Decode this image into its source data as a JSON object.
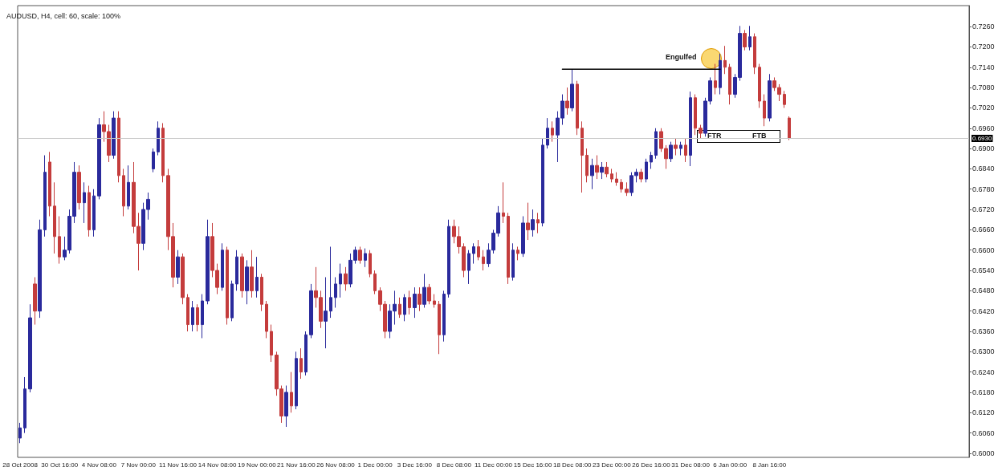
{
  "chart_data": {
    "type": "candlestick",
    "title": "AUDUSD, H4, cell: 60, scale: 100%",
    "categories": [
      "28 Oct 2008",
      null,
      null,
      null,
      null,
      null,
      null,
      null,
      "30 Oct 16:00",
      null,
      null,
      null,
      null,
      null,
      null,
      null,
      "4 Nov 08:00",
      null,
      null,
      null,
      null,
      null,
      null,
      null,
      "7 Nov 00:00",
      null,
      null,
      null,
      null,
      null,
      null,
      null,
      "11 Nov 16:00",
      null,
      null,
      null,
      null,
      null,
      null,
      null,
      "14 Nov 08:00",
      null,
      null,
      null,
      null,
      null,
      null,
      null,
      "19 Nov 00:00",
      null,
      null,
      null,
      null,
      null,
      null,
      null,
      "21 Nov 16:00",
      null,
      null,
      null,
      null,
      null,
      null,
      null,
      "26 Nov 08:00",
      null,
      null,
      null,
      null,
      null,
      null,
      null,
      "1 Dec 00:00",
      null,
      null,
      null,
      null,
      null,
      null,
      null,
      "3 Dec 16:00",
      null,
      null,
      null,
      null,
      null,
      null,
      null,
      "8 Dec 08:00",
      null,
      null,
      null,
      null,
      null,
      null,
      null,
      "11 Dec 00:00",
      null,
      null,
      null,
      null,
      null,
      null,
      null,
      "15 Dec 16:00",
      null,
      null,
      null,
      null,
      null,
      null,
      null,
      "18 Dec 08:00",
      null,
      null,
      null,
      null,
      null,
      null,
      null,
      "23 Dec 00:00",
      null,
      null,
      null,
      null,
      null,
      null,
      null,
      "26 Dec 16:00",
      null,
      null,
      null,
      null,
      null,
      null,
      null,
      "31 Dec 08:00",
      null,
      null,
      null,
      null,
      null,
      null,
      null,
      "6 Jan 00:00",
      null,
      null,
      null,
      null,
      null,
      null,
      null,
      "8 Jan 16:00",
      null,
      null,
      null,
      null,
      null,
      null,
      null,
      null,
      null,
      null,
      null,
      null,
      null,
      null,
      null,
      null,
      null,
      null,
      null,
      null,
      null,
      null,
      null,
      null,
      null,
      null,
      null,
      null,
      null,
      null,
      null,
      null,
      null,
      null,
      null,
      null,
      null,
      null,
      null,
      null
    ],
    "ohlc": [
      [
        0.6045,
        0.609,
        0.603,
        0.6075
      ],
      [
        0.6075,
        0.6225,
        0.606,
        0.619
      ],
      [
        0.619,
        0.644,
        0.618,
        0.64
      ],
      [
        0.65,
        0.652,
        0.638,
        0.642
      ],
      [
        0.642,
        0.669,
        0.64,
        0.666
      ],
      [
        0.666,
        0.688,
        0.664,
        0.683
      ],
      [
        0.686,
        0.689,
        0.67,
        0.673
      ],
      [
        0.673,
        0.68,
        0.659,
        0.664
      ],
      [
        0.664,
        0.67,
        0.656,
        0.658
      ],
      [
        0.658,
        0.664,
        0.657,
        0.66
      ],
      [
        0.66,
        0.672,
        0.659,
        0.67
      ],
      [
        0.67,
        0.686,
        0.668,
        0.683
      ],
      [
        0.683,
        0.685,
        0.672,
        0.674
      ],
      [
        0.674,
        0.68,
        0.668,
        0.677
      ],
      [
        0.677,
        0.679,
        0.664,
        0.666
      ],
      [
        0.666,
        0.678,
        0.664,
        0.676
      ],
      [
        0.676,
        0.699,
        0.675,
        0.697
      ],
      [
        0.697,
        0.701,
        0.692,
        0.695
      ],
      [
        0.695,
        0.697,
        0.686,
        0.688
      ],
      [
        0.688,
        0.701,
        0.687,
        0.699
      ],
      [
        0.699,
        0.701,
        0.68,
        0.682
      ],
      [
        0.682,
        0.684,
        0.67,
        0.673
      ],
      [
        0.673,
        0.685,
        0.672,
        0.68
      ],
      [
        0.68,
        0.686,
        0.665,
        0.667
      ],
      [
        0.667,
        0.671,
        0.654,
        0.662
      ],
      [
        0.662,
        0.674,
        0.66,
        0.672
      ],
      [
        0.672,
        0.677,
        0.669,
        0.675
      ],
      [
        0.684,
        0.69,
        0.683,
        0.689
      ],
      [
        0.689,
        0.698,
        0.688,
        0.696
      ],
      [
        0.696,
        0.6975,
        0.68,
        0.682
      ],
      [
        0.682,
        0.684,
        0.66,
        0.664
      ],
      [
        0.664,
        0.668,
        0.649,
        0.652
      ],
      [
        0.652,
        0.66,
        0.65,
        0.658
      ],
      [
        0.658,
        0.659,
        0.644,
        0.646
      ],
      [
        0.646,
        0.647,
        0.636,
        0.638
      ],
      [
        0.638,
        0.645,
        0.636,
        0.643
      ],
      [
        0.643,
        0.644,
        0.636,
        0.638
      ],
      [
        0.638,
        0.647,
        0.634,
        0.645
      ],
      [
        0.645,
        0.669,
        0.644,
        0.664
      ],
      [
        0.664,
        0.668,
        0.652,
        0.654
      ],
      [
        0.654,
        0.656,
        0.647,
        0.649
      ],
      [
        0.649,
        0.662,
        0.648,
        0.66
      ],
      [
        0.66,
        0.661,
        0.638,
        0.64
      ],
      [
        0.64,
        0.651,
        0.639,
        0.65
      ],
      [
        0.65,
        0.66,
        0.648,
        0.658
      ],
      [
        0.658,
        0.659,
        0.646,
        0.648
      ],
      [
        0.648,
        0.657,
        0.644,
        0.655
      ],
      [
        0.655,
        0.66,
        0.646,
        0.648
      ],
      [
        0.648,
        0.658,
        0.646,
        0.652
      ],
      [
        0.652,
        0.653,
        0.642,
        0.644
      ],
      [
        0.644,
        0.645,
        0.634,
        0.636
      ],
      [
        0.636,
        0.638,
        0.627,
        0.629
      ],
      [
        0.629,
        0.63,
        0.617,
        0.619
      ],
      [
        0.619,
        0.62,
        0.609,
        0.611
      ],
      [
        0.611,
        0.62,
        0.6078,
        0.618
      ],
      [
        0.618,
        0.624,
        0.612,
        0.614
      ],
      [
        0.614,
        0.63,
        0.613,
        0.628
      ],
      [
        0.628,
        0.631,
        0.622,
        0.624
      ],
      [
        0.624,
        0.636,
        0.623,
        0.635
      ],
      [
        0.635,
        0.65,
        0.634,
        0.648
      ],
      [
        0.648,
        0.655,
        0.643,
        0.646
      ],
      [
        0.646,
        0.648,
        0.637,
        0.639
      ],
      [
        0.639,
        0.652,
        0.631,
        0.642
      ],
      [
        0.642,
        0.661,
        0.64,
        0.646
      ],
      [
        0.646,
        0.652,
        0.643,
        0.65
      ],
      [
        0.65,
        0.656,
        0.646,
        0.653
      ],
      [
        0.653,
        0.655,
        0.648,
        0.65
      ],
      [
        0.65,
        0.659,
        0.649,
        0.657
      ],
      [
        0.657,
        0.661,
        0.656,
        0.66
      ],
      [
        0.66,
        0.661,
        0.656,
        0.657
      ],
      [
        0.657,
        0.6605,
        0.655,
        0.659
      ],
      [
        0.659,
        0.66,
        0.652,
        0.653
      ],
      [
        0.653,
        0.654,
        0.647,
        0.648
      ],
      [
        0.648,
        0.649,
        0.642,
        0.644
      ],
      [
        0.644,
        0.645,
        0.634,
        0.636
      ],
      [
        0.636,
        0.644,
        0.634,
        0.642
      ],
      [
        0.642,
        0.648,
        0.638,
        0.644
      ],
      [
        0.644,
        0.646,
        0.64,
        0.641
      ],
      [
        0.641,
        0.647,
        0.639,
        0.646
      ],
      [
        0.646,
        0.648,
        0.641,
        0.643
      ],
      [
        0.643,
        0.649,
        0.64,
        0.647
      ],
      [
        0.647,
        0.649,
        0.642,
        0.644
      ],
      [
        0.644,
        0.653,
        0.643,
        0.649
      ],
      [
        0.649,
        0.65,
        0.644,
        0.645
      ],
      [
        0.645,
        0.647,
        0.643,
        0.644
      ],
      [
        0.644,
        0.645,
        0.6293,
        0.635
      ],
      [
        0.635,
        0.648,
        0.633,
        0.647
      ],
      [
        0.647,
        0.669,
        0.646,
        0.667
      ],
      [
        0.667,
        0.669,
        0.662,
        0.664
      ],
      [
        0.664,
        0.667,
        0.659,
        0.661
      ],
      [
        0.661,
        0.662,
        0.652,
        0.654
      ],
      [
        0.654,
        0.66,
        0.65,
        0.659
      ],
      [
        0.659,
        0.662,
        0.656,
        0.661
      ],
      [
        0.661,
        0.663,
        0.657,
        0.658
      ],
      [
        0.658,
        0.66,
        0.654,
        0.656
      ],
      [
        0.656,
        0.662,
        0.655,
        0.66
      ],
      [
        0.66,
        0.666,
        0.659,
        0.665
      ],
      [
        0.665,
        0.673,
        0.664,
        0.671
      ],
      [
        0.671,
        0.68,
        0.668,
        0.67
      ],
      [
        0.67,
        0.671,
        0.65,
        0.652
      ],
      [
        0.652,
        0.662,
        0.651,
        0.66
      ],
      [
        0.66,
        0.661,
        0.657,
        0.659
      ],
      [
        0.659,
        0.67,
        0.658,
        0.668
      ],
      [
        0.668,
        0.674,
        0.663,
        0.666
      ],
      [
        0.666,
        0.672,
        0.664,
        0.669
      ],
      [
        0.669,
        0.671,
        0.665,
        0.668
      ],
      [
        0.668,
        0.693,
        0.667,
        0.691
      ],
      [
        0.691,
        0.699,
        0.69,
        0.696
      ],
      [
        0.696,
        0.698,
        0.692,
        0.694
      ],
      [
        0.694,
        0.701,
        0.686,
        0.699
      ],
      [
        0.699,
        0.706,
        0.697,
        0.704
      ],
      [
        0.704,
        0.708,
        0.7,
        0.702
      ],
      [
        0.702,
        0.7134,
        0.701,
        0.709
      ],
      [
        0.709,
        0.71,
        0.694,
        0.696
      ],
      [
        0.696,
        0.698,
        0.677,
        0.688
      ],
      [
        0.688,
        0.69,
        0.68,
        0.682
      ],
      [
        0.682,
        0.687,
        0.678,
        0.685
      ],
      [
        0.685,
        0.688,
        0.681,
        0.683
      ],
      [
        0.683,
        0.686,
        0.681,
        0.6845
      ],
      [
        0.6845,
        0.686,
        0.6815,
        0.6825
      ],
      [
        0.6825,
        0.684,
        0.68,
        0.681
      ],
      [
        0.681,
        0.683,
        0.679,
        0.68
      ],
      [
        0.68,
        0.681,
        0.677,
        0.678
      ],
      [
        0.678,
        0.68,
        0.676,
        0.677
      ],
      [
        0.677,
        0.683,
        0.676,
        0.682
      ],
      [
        0.682,
        0.684,
        0.68,
        0.683
      ],
      [
        0.683,
        0.684,
        0.68,
        0.681
      ],
      [
        0.681,
        0.687,
        0.68,
        0.686
      ],
      [
        0.686,
        0.689,
        0.684,
        0.688
      ],
      [
        0.688,
        0.696,
        0.687,
        0.695
      ],
      [
        0.695,
        0.696,
        0.689,
        0.69
      ],
      [
        0.69,
        0.691,
        0.684,
        0.687
      ],
      [
        0.687,
        0.692,
        0.686,
        0.691
      ],
      [
        0.691,
        0.693,
        0.688,
        0.69
      ],
      [
        0.69,
        0.692,
        0.688,
        0.691
      ],
      [
        0.691,
        0.693,
        0.686,
        0.688
      ],
      [
        0.688,
        0.7068,
        0.6848,
        0.705
      ],
      [
        0.705,
        0.706,
        0.694,
        0.696
      ],
      [
        0.696,
        0.697,
        0.693,
        0.6945
      ],
      [
        0.6945,
        0.705,
        0.6935,
        0.704
      ],
      [
        0.704,
        0.711,
        0.703,
        0.71
      ],
      [
        0.71,
        0.715,
        0.706,
        0.708
      ],
      [
        0.708,
        0.718,
        0.706,
        0.716
      ],
      [
        0.716,
        0.7203,
        0.712,
        0.714
      ],
      [
        0.714,
        0.715,
        0.703,
        0.706
      ],
      [
        0.706,
        0.712,
        0.705,
        0.711
      ],
      [
        0.711,
        0.7262,
        0.71,
        0.724
      ],
      [
        0.724,
        0.725,
        0.719,
        0.72
      ],
      [
        0.72,
        0.7262,
        0.719,
        0.723
      ],
      [
        0.723,
        0.724,
        0.712,
        0.714
      ],
      [
        0.714,
        0.715,
        0.702,
        0.704
      ],
      [
        0.704,
        0.706,
        0.6966,
        0.699
      ],
      [
        0.699,
        0.712,
        0.698,
        0.71
      ],
      [
        0.71,
        0.711,
        0.707,
        0.708
      ],
      [
        0.708,
        0.709,
        0.704,
        0.706
      ],
      [
        0.706,
        0.707,
        0.702,
        0.703
      ],
      [
        0.699,
        0.6995,
        0.6925,
        0.693
      ],
      null,
      null,
      null,
      null,
      null,
      null,
      null,
      null,
      null,
      null,
      null,
      null,
      null,
      null,
      null,
      null,
      null,
      null,
      null,
      null,
      null,
      null,
      null,
      null,
      null,
      null,
      null,
      null,
      null,
      null,
      null,
      null,
      null,
      null,
      null,
      null
    ],
    "colors": [
      "#2a2a9c",
      "#2a2a9c",
      "#2a2a9c",
      "#c43c3c",
      "#2a2a9c",
      "#2a2a9c",
      "#c43c3c",
      "#c43c3c",
      "#c43c3c",
      "#2a2a9c",
      "#2a2a9c",
      "#2a2a9c",
      "#c43c3c",
      "#2a2a9c",
      "#c43c3c",
      "#2a2a9c",
      "#2a2a9c",
      "#c43c3c",
      "#c43c3c",
      "#2a2a9c",
      "#c43c3c",
      "#c43c3c",
      "#2a2a9c",
      "#c43c3c",
      "#c43c3c",
      "#2a2a9c",
      "#2a2a9c",
      "#2a2a9c",
      "#2a2a9c",
      "#c43c3c",
      "#c43c3c",
      "#c43c3c",
      "#2a2a9c",
      "#c43c3c",
      "#c43c3c",
      "#2a2a9c",
      "#c43c3c",
      "#2a2a9c",
      "#2a2a9c",
      "#c43c3c",
      "#c43c3c",
      "#2a2a9c",
      "#c43c3c",
      "#2a2a9c",
      "#2a2a9c",
      "#c43c3c",
      "#2a2a9c",
      "#c43c3c",
      "#2a2a9c",
      "#c43c3c",
      "#c43c3c",
      "#c43c3c",
      "#c43c3c",
      "#c43c3c",
      "#2a2a9c",
      "#c43c3c",
      "#2a2a9c",
      "#c43c3c",
      "#2a2a9c",
      "#2a2a9c",
      "#c43c3c",
      "#c43c3c",
      "#2a2a9c",
      "#2a2a9c",
      "#2a2a9c",
      "#2a2a9c",
      "#c43c3c",
      "#2a2a9c",
      "#2a2a9c",
      "#c43c3c",
      "#2a2a9c",
      "#c43c3c",
      "#c43c3c",
      "#c43c3c",
      "#c43c3c",
      "#2a2a9c",
      "#2a2a9c",
      "#c43c3c",
      "#2a2a9c",
      "#c43c3c",
      "#2a2a9c",
      "#c43c3c",
      "#2a2a9c",
      "#c43c3c",
      "#c43c3c",
      "#c43c3c",
      "#2a2a9c",
      "#2a2a9c",
      "#c43c3c",
      "#c43c3c",
      "#c43c3c",
      "#2a2a9c",
      "#2a2a9c",
      "#c43c3c",
      "#c43c3c",
      "#2a2a9c",
      "#2a2a9c",
      "#2a2a9c",
      "#c43c3c",
      "#c43c3c",
      "#2a2a9c",
      "#c43c3c",
      "#2a2a9c",
      "#c43c3c",
      "#2a2a9c",
      "#c43c3c",
      "#2a2a9c",
      "#2a2a9c",
      "#c43c3c",
      "#2a2a9c",
      "#2a2a9c",
      "#c43c3c",
      "#2a2a9c",
      "#c43c3c",
      "#c43c3c",
      "#c43c3c",
      "#2a2a9c",
      "#c43c3c",
      "#2a2a9c",
      "#c43c3c",
      "#c43c3c",
      "#c43c3c",
      "#c43c3c",
      "#c43c3c",
      "#2a2a9c",
      "#2a2a9c",
      "#c43c3c",
      "#2a2a9c",
      "#2a2a9c",
      "#2a2a9c",
      "#c43c3c",
      "#c43c3c",
      "#2a2a9c",
      "#c43c3c",
      "#2a2a9c",
      "#c43c3c",
      "#2a2a9c",
      "#c43c3c",
      "#c43c3c",
      "#2a2a9c",
      "#2a2a9c",
      "#c43c3c",
      "#2a2a9c",
      "#c43c3c",
      "#c43c3c",
      "#2a2a9c",
      "#2a2a9c",
      "#c43c3c",
      "#2a2a9c",
      "#c43c3c",
      "#c43c3c",
      "#c43c3c",
      "#2a2a9c",
      "#c43c3c",
      "#c43c3c",
      "#c43c3c",
      "#c43c3c",
      null,
      null,
      null,
      null,
      null,
      null,
      null,
      null,
      null,
      null,
      null,
      null,
      null,
      null,
      null,
      null,
      null,
      null,
      null,
      null,
      null,
      null,
      null,
      null,
      null,
      null,
      null,
      null,
      null,
      null,
      null,
      null,
      null,
      null,
      null,
      null
    ],
    "series": [
      {
        "type": "line",
        "color": "#000000",
        "values": [
          null,
          null,
          null,
          null,
          null,
          null,
          null,
          null,
          null,
          null,
          null,
          null,
          null,
          null,
          null,
          null,
          null,
          null,
          null,
          null,
          null,
          null,
          null,
          null,
          null,
          null,
          null,
          null,
          null,
          null,
          null,
          null,
          null,
          null,
          null,
          null,
          null,
          null,
          null,
          null,
          null,
          null,
          null,
          null,
          null,
          null,
          null,
          null,
          null,
          null,
          null,
          null,
          null,
          null,
          null,
          null,
          null,
          null,
          null,
          null,
          null,
          null,
          null,
          null,
          null,
          null,
          null,
          null,
          null,
          null,
          null,
          null,
          null,
          null,
          null,
          null,
          null,
          null,
          null,
          null,
          null,
          null,
          null,
          null,
          null,
          null,
          null,
          null,
          null,
          null,
          null,
          null,
          null,
          null,
          null,
          null,
          null,
          null,
          null,
          null,
          null,
          null,
          null,
          null,
          null,
          null,
          null,
          null,
          null,
          null,
          0.7134,
          null,
          null,
          null,
          null,
          null,
          null,
          null,
          null,
          null,
          null,
          null,
          null,
          null,
          null,
          null,
          null,
          null,
          null,
          null,
          null,
          null,
          null,
          null,
          null,
          null,
          null,
          null,
          null,
          null,
          null,
          null,
          0.7134,
          null,
          null,
          null,
          null,
          null,
          null,
          null,
          null,
          null,
          null,
          null,
          null,
          null,
          null,
          null,
          null,
          null,
          null,
          null,
          null,
          null,
          null,
          null,
          null,
          null,
          null,
          null,
          null,
          null,
          null,
          null,
          null,
          null,
          null,
          null,
          null,
          null,
          null,
          null,
          null,
          null,
          null,
          null,
          null,
          null,
          null,
          null,
          null,
          null,
          null
        ]
      }
    ],
    "marker": "none",
    "ylim": [
      0.5988,
      0.7322
    ],
    "yticks": [
      {
        "value": 0.6,
        "label": "0.6000"
      },
      {
        "value": 0.606,
        "label": "0.6060"
      },
      {
        "value": 0.612,
        "label": "0.6120"
      },
      {
        "value": 0.618,
        "label": "0.6180"
      },
      {
        "value": 0.624,
        "label": "0.6240"
      },
      {
        "value": 0.63,
        "label": "0.6300"
      },
      {
        "value": 0.636,
        "label": "0.6360"
      },
      {
        "value": 0.642,
        "label": "0.6420"
      },
      {
        "value": 0.648,
        "label": "0.6480"
      },
      {
        "value": 0.654,
        "label": "0.6540"
      },
      {
        "value": 0.66,
        "label": "0.6600"
      },
      {
        "value": 0.666,
        "label": "0.6660"
      },
      {
        "value": 0.672,
        "label": "0.6720"
      },
      {
        "value": 0.678,
        "label": "0.6780"
      },
      {
        "value": 0.684,
        "label": "0.6840"
      },
      {
        "value": 0.69,
        "label": "0.6900"
      },
      {
        "value": 0.696,
        "label": "0.6960"
      },
      {
        "value": 0.702,
        "label": "0.7020"
      },
      {
        "value": 0.708,
        "label": "0.7080"
      },
      {
        "value": 0.714,
        "label": "0.7140"
      },
      {
        "value": 0.72,
        "label": "0.7200"
      },
      {
        "value": 0.726,
        "label": "0.7260"
      }
    ],
    "ref_lines": [
      {
        "axis": "y",
        "value": 0.693,
        "label": "0.6930",
        "color": "#c8c8c8"
      }
    ],
    "annotations": [
      "Engulfed",
      "FTR",
      "FTB"
    ]
  }
}
